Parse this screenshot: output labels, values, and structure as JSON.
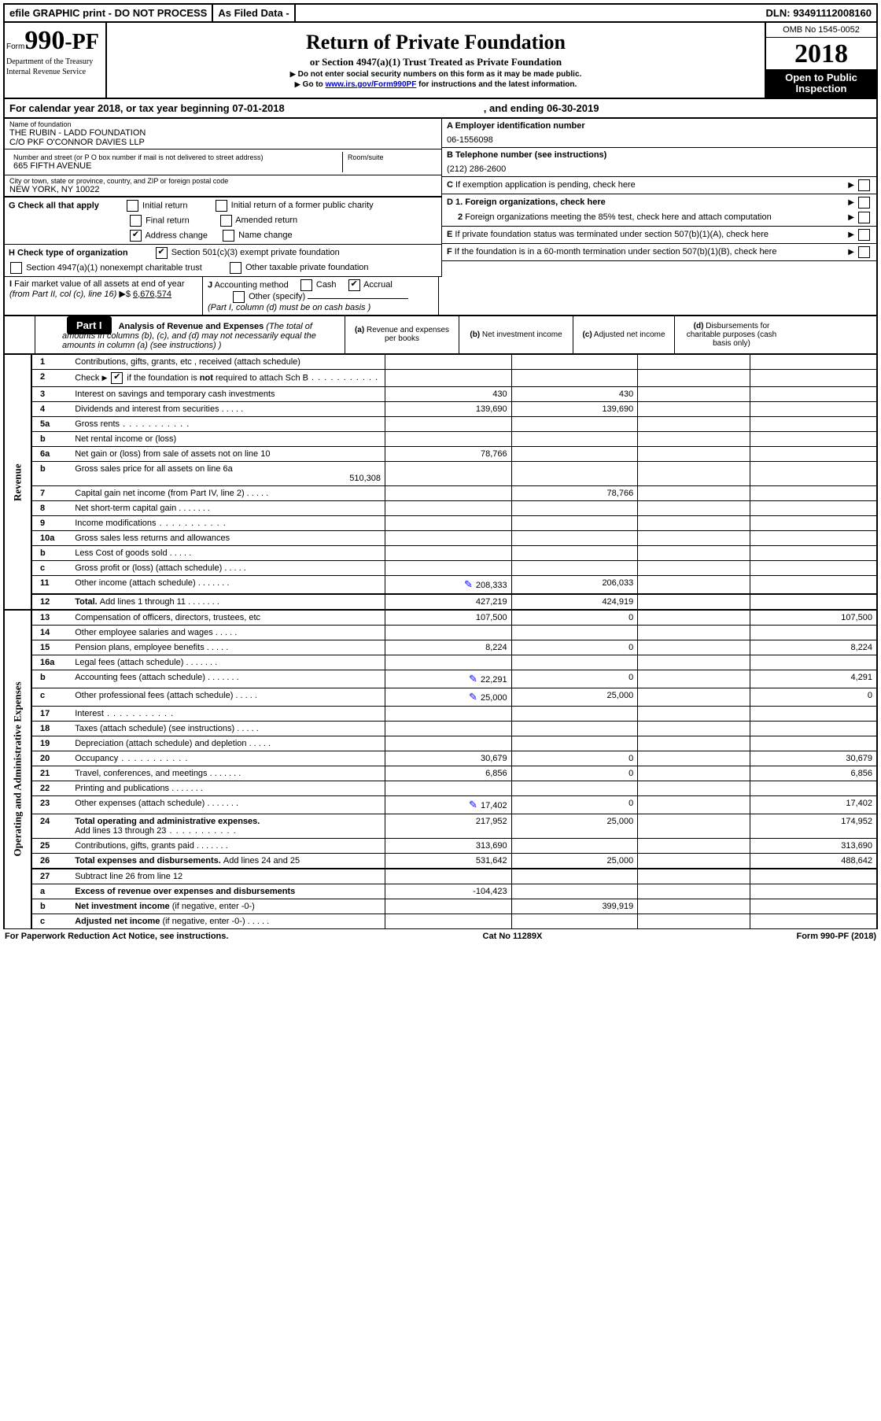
{
  "top": {
    "efile": "efile GRAPHIC print - DO NOT PROCESS",
    "asfiled": "As Filed Data -",
    "dln_label": "DLN:",
    "dln": "93491112008160"
  },
  "header": {
    "form_label": "Form",
    "form_no": "990",
    "form_suffix": "-PF",
    "dept1": "Department of the Treasury",
    "dept2": "Internal Revenue Service",
    "title": "Return of Private Foundation",
    "subtitle": "or Section 4947(a)(1) Trust Treated as Private Foundation",
    "instr1": "Do not enter social security numbers on this form as it may be made public.",
    "instr2_pre": "Go to ",
    "instr2_link": "www.irs.gov/Form990PF",
    "instr2_post": " for instructions and the latest information.",
    "omb": "OMB No 1545-0052",
    "year": "2018",
    "open1": "Open to Public",
    "open2": "Inspection"
  },
  "calyear": {
    "pre": "For calendar year 2018, or tax year beginning ",
    "begin": "07-01-2018",
    "mid": ", and ending ",
    "end": "06-30-2019"
  },
  "entity": {
    "name_lbl": "Name of foundation",
    "name1": "THE RUBIN - LADD FOUNDATION",
    "name2": "C/O PKF O'CONNOR DAVIES LLP",
    "addr_lbl": "Number and street (or P O  box number if mail is not delivered to street address)",
    "room_lbl": "Room/suite",
    "addr": "665 FIFTH AVENUE",
    "city_lbl": "City or town, state or province, country, and ZIP or foreign postal code",
    "city": "NEW YORK, NY  10022",
    "a_lbl": "A Employer identification number",
    "a_val": "06-1556098",
    "b_lbl": "B Telephone number (see instructions)",
    "b_val": "(212) 286-2600",
    "c_lbl": "C  If exemption application is pending, check here"
  },
  "g": {
    "label": "G Check all that apply",
    "opts": [
      "Initial return",
      "Initial return of a former public charity",
      "Final return",
      "Amended return",
      "Address change",
      "Name change"
    ]
  },
  "h": {
    "label": "H Check type of organization",
    "opt1": "Section 501(c)(3) exempt private foundation",
    "opt2": "Section 4947(a)(1) nonexempt charitable trust",
    "opt3": "Other taxable private foundation"
  },
  "d": {
    "d1": "D 1. Foreign organizations, check here",
    "d2a": "2",
    "d2b": " Foreign organizations meeting the 85% test, check here and attach computation"
  },
  "e": {
    "label": "E  If private foundation status was terminated under section 507(b)(1)(A), check here"
  },
  "f": {
    "label": "F  If the foundation is in a 60-month termination under section 507(b)(1)(B), check here"
  },
  "i": {
    "label": "I Fair market value of all assets at end of year (from Part II, col  (c), line 16)",
    "val_prefix": "▶$  ",
    "val": "6,676,574"
  },
  "j": {
    "label": "J Accounting method",
    "cash": "Cash",
    "accrual": "Accrual",
    "other": "Other (specify)",
    "note": "(Part I, column (d) must be on cash basis )"
  },
  "part1": {
    "label": "Part I",
    "title": "Analysis of Revenue and Expenses",
    "note": " (The total of amounts in columns (b), (c), and (d) may not necessarily equal the amounts in column (a) (see instructions) )",
    "col_a": "(a)   Revenue and expenses per books",
    "col_b": "(b)  Net investment income",
    "col_c": "(c)  Adjusted net income",
    "col_d": "(d)  Disbursements for charitable purposes (cash basis only)"
  },
  "sides": {
    "rev": "Revenue",
    "op": "Operating and Administrative Expenses"
  },
  "rows": [
    {
      "ln": "1",
      "desc": "Contributions, gifts, grants, etc , received (attach schedule)",
      "a": "",
      "b": "",
      "c": "",
      "d": ""
    },
    {
      "ln": "2",
      "desc_html": "Check <span class='arrow'></span><span class='cb checked'></span> if the foundation is <b>not</b> required to attach Sch  B",
      "dotcls": "dots",
      "a": "",
      "b": "",
      "c": "",
      "d": ""
    },
    {
      "ln": "3",
      "desc": "Interest on savings and temporary cash investments",
      "a": "430",
      "b": "430",
      "c": "",
      "d": ""
    },
    {
      "ln": "4",
      "desc": "Dividends and interest from securities",
      "dotcls": "dots-short",
      "a": "139,690",
      "b": "139,690",
      "c": "",
      "d": ""
    },
    {
      "ln": "5a",
      "desc": "Gross rents",
      "dotcls": "dots",
      "a": "",
      "b": "",
      "c": "",
      "d": ""
    },
    {
      "ln": "b",
      "desc": "Net rental income or (loss)  ",
      "a": "",
      "b": "",
      "c": "",
      "d": ""
    },
    {
      "ln": "6a",
      "desc": "Net gain or (loss) from sale of assets not on line 10",
      "a": "78,766",
      "b": "",
      "c": "",
      "d": ""
    },
    {
      "ln": "b",
      "desc": "Gross sales price for all assets on line 6a",
      "sub": "510,308",
      "a": "",
      "b": "",
      "c": "",
      "d": ""
    },
    {
      "ln": "7",
      "desc": "Capital gain net income (from Part IV, line 2)",
      "dotcls": "dots-short",
      "a": "",
      "b": "78,766",
      "c": "",
      "d": ""
    },
    {
      "ln": "8",
      "desc": "Net short-term capital gain",
      "dotcls": "dots-med",
      "a": "",
      "b": "",
      "c": "",
      "d": ""
    },
    {
      "ln": "9",
      "desc": "Income modifications",
      "dotcls": "dots",
      "a": "",
      "b": "",
      "c": "",
      "d": ""
    },
    {
      "ln": "10a",
      "desc": "Gross sales less returns and allowances ",
      "a": "",
      "b": "",
      "c": "",
      "d": ""
    },
    {
      "ln": "b",
      "desc": "Less  Cost of goods sold",
      "dotcls": "dots-short",
      "a": "",
      "b": "",
      "c": "",
      "d": ""
    },
    {
      "ln": "c",
      "desc": "Gross profit or (loss) (attach schedule)",
      "dotcls": "dots-short",
      "a": "",
      "b": "",
      "c": "",
      "d": ""
    },
    {
      "ln": "11",
      "desc": "Other income (attach schedule)",
      "dotcls": "dots-med",
      "icon": true,
      "a": "208,333",
      "b": "206,033",
      "c": "",
      "d": ""
    },
    {
      "ln": "12",
      "desc_bold": "Total. ",
      "desc": "Add lines 1 through 11",
      "dotcls": "dots-med",
      "a": "427,219",
      "b": "424,919",
      "c": "",
      "d": ""
    }
  ],
  "oprows": [
    {
      "ln": "13",
      "desc": "Compensation of officers, directors, trustees, etc",
      "a": "107,500",
      "b": "0",
      "c": "",
      "d": "107,500"
    },
    {
      "ln": "14",
      "desc": "Other employee salaries and wages",
      "dotcls": "dots-short",
      "a": "",
      "b": "",
      "c": "",
      "d": ""
    },
    {
      "ln": "15",
      "desc": "Pension plans, employee benefits",
      "dotcls": "dots-short",
      "a": "8,224",
      "b": "0",
      "c": "",
      "d": "8,224"
    },
    {
      "ln": "16a",
      "desc": "Legal fees (attach schedule)",
      "dotcls": "dots-med",
      "a": "",
      "b": "",
      "c": "",
      "d": ""
    },
    {
      "ln": "b",
      "desc": "Accounting fees (attach schedule)",
      "dotcls": "dots-med",
      "icon": true,
      "a": "22,291",
      "b": "0",
      "c": "",
      "d": "4,291"
    },
    {
      "ln": "c",
      "desc": "Other professional fees (attach schedule)",
      "dotcls": "dots-short",
      "icon": true,
      "a": "25,000",
      "b": "25,000",
      "c": "",
      "d": "0"
    },
    {
      "ln": "17",
      "desc": "Interest",
      "dotcls": "dots",
      "a": "",
      "b": "",
      "c": "",
      "d": ""
    },
    {
      "ln": "18",
      "desc": "Taxes (attach schedule) (see instructions)",
      "dotcls": "dots-short",
      "a": "",
      "b": "",
      "c": "",
      "d": ""
    },
    {
      "ln": "19",
      "desc": "Depreciation (attach schedule) and depletion",
      "dotcls": "dots-short",
      "a": "",
      "b": "",
      "c": "",
      "d": ""
    },
    {
      "ln": "20",
      "desc": "Occupancy",
      "dotcls": "dots",
      "a": "30,679",
      "b": "0",
      "c": "",
      "d": "30,679"
    },
    {
      "ln": "21",
      "desc": "Travel, conferences, and meetings",
      "dotcls": "dots-med",
      "a": "6,856",
      "b": "0",
      "c": "",
      "d": "6,856"
    },
    {
      "ln": "22",
      "desc": "Printing and publications",
      "dotcls": "dots-med",
      "a": "",
      "b": "",
      "c": "",
      "d": ""
    },
    {
      "ln": "23",
      "desc": "Other expenses (attach schedule)",
      "dotcls": "dots-med",
      "icon": true,
      "a": "17,402",
      "b": "0",
      "c": "",
      "d": "17,402"
    },
    {
      "ln": "24",
      "desc_bold": "Total operating and administrative expenses.",
      "desc2": "Add lines 13 through 23",
      "dotcls": "dots",
      "a": "217,952",
      "b": "25,000",
      "c": "",
      "d": "174,952"
    },
    {
      "ln": "25",
      "desc": "Contributions, gifts, grants paid",
      "dotcls": "dots-med",
      "a": "313,690",
      "b": "",
      "c": "",
      "d": "313,690"
    },
    {
      "ln": "26",
      "desc_bold": "Total expenses and disbursements. ",
      "desc": "Add lines 24 and 25",
      "a": "531,642",
      "b": "25,000",
      "c": "",
      "d": "488,642"
    },
    {
      "ln": "27",
      "desc": "Subtract line 26 from line 12",
      "a": "",
      "b": "",
      "c": "",
      "d": ""
    },
    {
      "ln": "a",
      "desc_bold": "Excess of revenue over expenses and disbursements",
      "a": "-104,423",
      "b": "",
      "c": "",
      "d": ""
    },
    {
      "ln": "b",
      "desc_bold": "Net investment income ",
      "desc": "(if negative, enter -0-)",
      "a": "",
      "b": "399,919",
      "c": "",
      "d": ""
    },
    {
      "ln": "c",
      "desc_bold": "Adjusted net income ",
      "desc": "(if negative, enter -0-)",
      "dotcls": "dots-short",
      "a": "",
      "b": "",
      "c": "",
      "d": ""
    }
  ],
  "footer": {
    "left": "For Paperwork Reduction Act Notice, see instructions.",
    "mid": "Cat  No  11289X",
    "right": "Form 990-PF (2018)"
  }
}
